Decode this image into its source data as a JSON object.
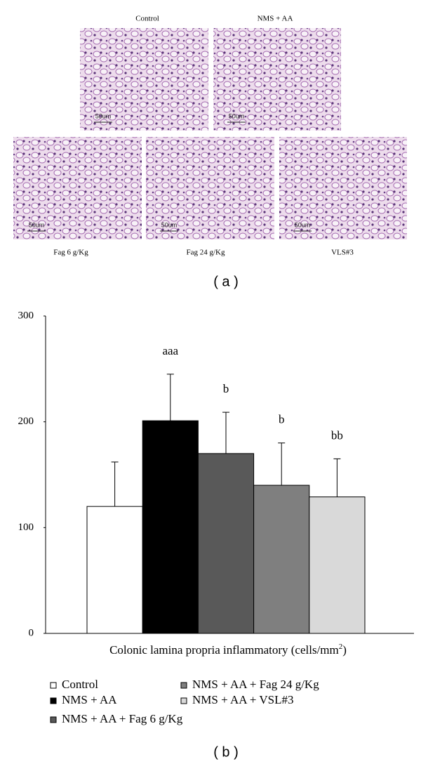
{
  "panel_a": {
    "images": [
      {
        "label": "Control",
        "scale_label": "50um"
      },
      {
        "label": "NMS + AA",
        "scale_label": "50um"
      },
      {
        "label": "Fag 6 g/Kg",
        "scale_label": "50um"
      },
      {
        "label": "Fag 24 g/Kg",
        "scale_label": "50um"
      },
      {
        "label": "VLS#3",
        "scale_label": "50um"
      }
    ],
    "caption": "( a )"
  },
  "chart_data": {
    "type": "bar",
    "categories": [
      "Control",
      "NMS + AA",
      "NMS + AA + Fag 6 g/Kg",
      "NMS + AA + Fag 24 g/Kg",
      "NMS + AA + VSL#3"
    ],
    "values": [
      120,
      201,
      170,
      140,
      129
    ],
    "errors": [
      42,
      44,
      39,
      40,
      36
    ],
    "annotations": [
      null,
      "aaa",
      "b",
      "b",
      "bb"
    ],
    "colors": [
      "#ffffff",
      "#000000",
      "#595959",
      "#7f7f7f",
      "#d9d9d9"
    ],
    "xlabel": [
      "Colonic lamina propria inflammatory (cells/mm",
      "2",
      ")"
    ],
    "ylim": [
      0,
      300
    ],
    "yticks": [
      0,
      100,
      200,
      300
    ],
    "caption": "( b )"
  }
}
